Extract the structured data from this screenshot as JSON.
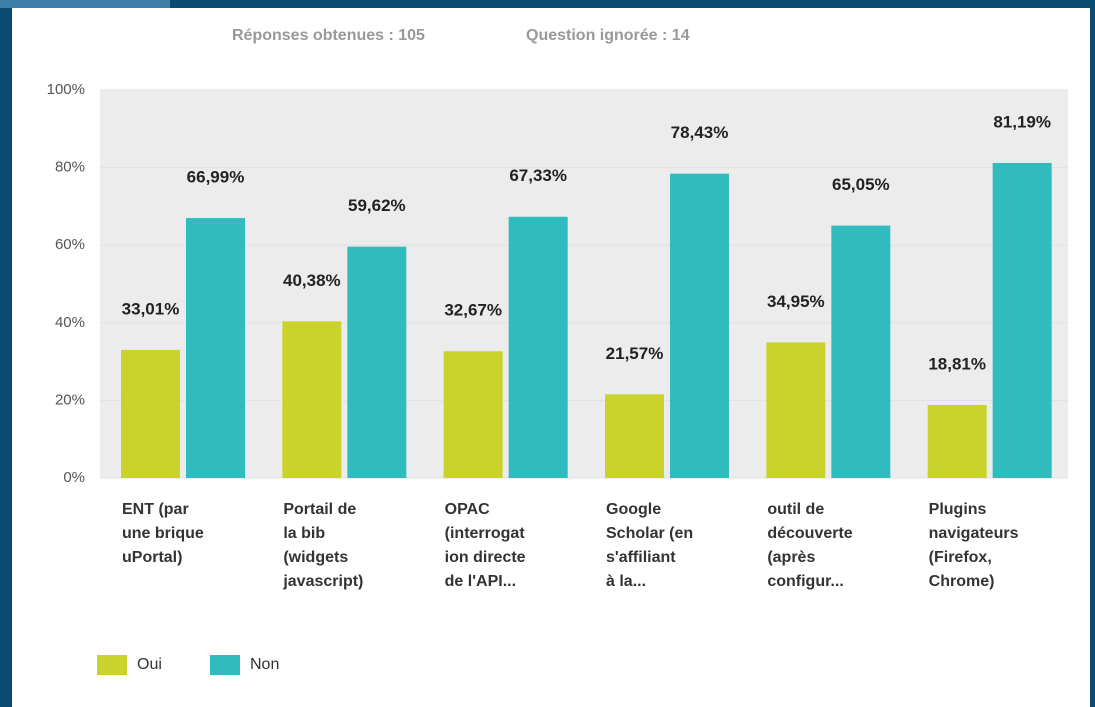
{
  "chart_data": {
    "type": "bar",
    "subtitle": [
      "Réponses obtenues : 105",
      "Question ignorée : 14"
    ],
    "categories": [
      "ENT (par\nune brique\nuPortal)",
      "Portail de\nla bib\n(widgets\njavascript)",
      "OPAC\n(interrogat\nion directe\nde l'API...",
      "Google\nScholar (en\ns'affiliant\nà la...",
      "outil de\ndécouverte\n(après\nconfigur...",
      "Plugins\nnavigateurs\n(Firefox,\nChrome)"
    ],
    "series": [
      {
        "name": "Oui",
        "color": "#c9d32b",
        "values": [
          33.01,
          40.38,
          32.67,
          21.57,
          34.95,
          18.81
        ],
        "value_labels": [
          "33,01%",
          "40,38%",
          "32,67%",
          "21,57%",
          "34,95%",
          "18,81%"
        ]
      },
      {
        "name": "Non",
        "color": "#30bcbf",
        "values": [
          66.99,
          59.62,
          67.33,
          78.43,
          65.05,
          81.19
        ],
        "value_labels": [
          "66,99%",
          "59,62%",
          "67,33%",
          "78,43%",
          "65,05%",
          "81,19%"
        ]
      }
    ],
    "ylim": [
      0,
      100
    ],
    "yticks": [
      {
        "value": 0,
        "label": "0%"
      },
      {
        "value": 20,
        "label": "20%"
      },
      {
        "value": 40,
        "label": "40%"
      },
      {
        "value": 60,
        "label": "60%"
      },
      {
        "value": 80,
        "label": "80%"
      },
      {
        "value": 100,
        "label": "100%"
      }
    ],
    "grid": true,
    "legend": "bottom-left"
  }
}
